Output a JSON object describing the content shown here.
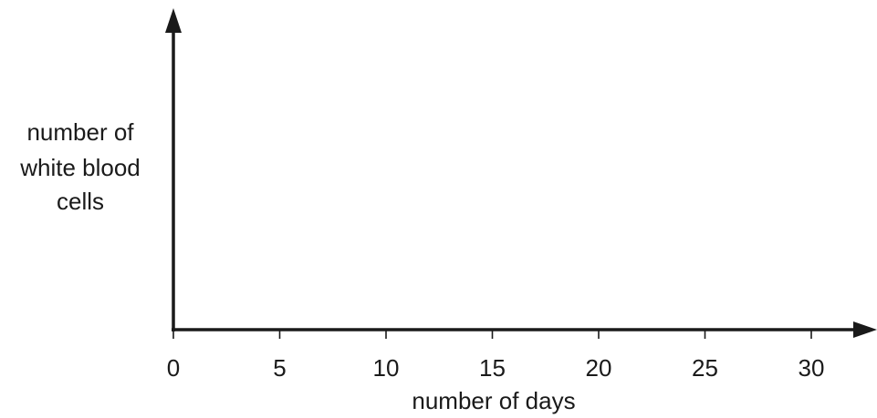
{
  "chart_data": {
    "type": "line",
    "title": "",
    "xlabel": "number of days",
    "ylabel": [
      "number of",
      "white blood",
      "cells"
    ],
    "x_ticks": [
      0,
      5,
      10,
      15,
      20,
      25,
      30
    ],
    "xlim": [
      0,
      30
    ],
    "y_ticks": [],
    "grid": false,
    "legend": "none",
    "series": []
  }
}
